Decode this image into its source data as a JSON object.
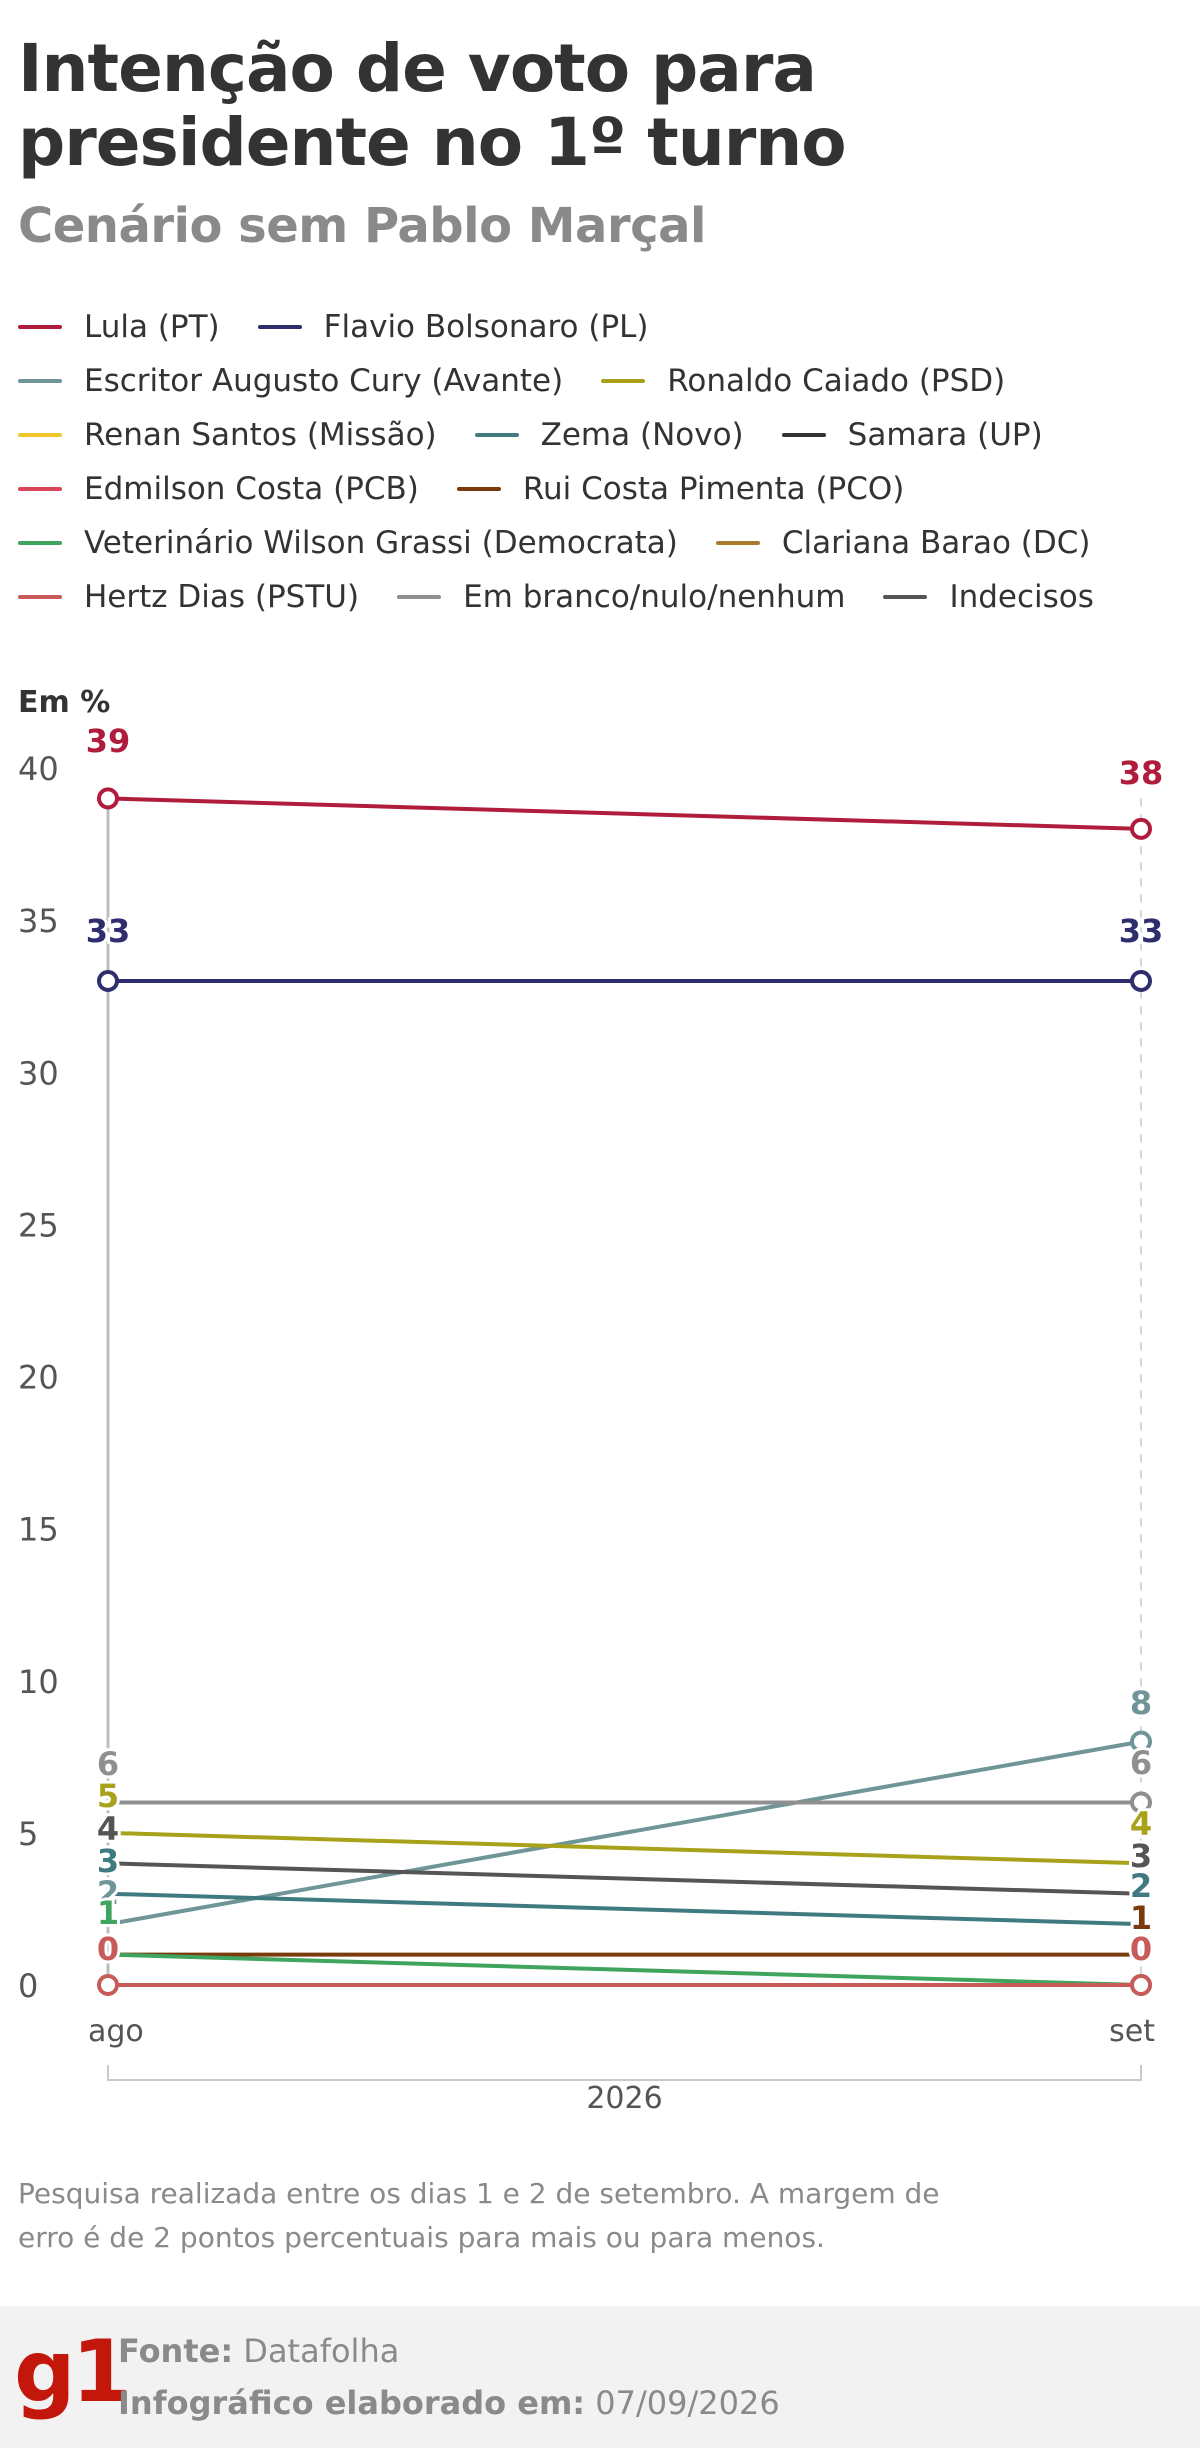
{
  "header": {
    "title": "Intenção de voto para presidente no 1º turno",
    "subtitle": "Cenário sem Pablo Marçal"
  },
  "chart_data": {
    "type": "line",
    "unit_label": "Em %",
    "x": [
      "ago",
      "set"
    ],
    "x_group_label": "2026",
    "ylim": [
      0,
      40
    ],
    "yticks": [
      0,
      5,
      10,
      15,
      20,
      25,
      30,
      35,
      40
    ],
    "grid": false,
    "legend_position": "top",
    "series": [
      {
        "name": "Lula (PT)",
        "color": "#b01c3c",
        "values": [
          39,
          38
        ]
      },
      {
        "name": "Flavio Bolsonaro (PL)",
        "color": "#2e2e6e",
        "values": [
          33,
          33
        ]
      },
      {
        "name": "Escritor Augusto Cury (Avante)",
        "color": "#6f9598",
        "values": [
          2,
          8
        ]
      },
      {
        "name": "Ronaldo Caiado (PSD)",
        "color": "#a8a21a",
        "values": [
          5,
          4
        ]
      },
      {
        "name": "Renan Santos (Missão)",
        "color": "#f2c52b",
        "values": [
          null,
          null
        ]
      },
      {
        "name": "Zema (Novo)",
        "color": "#3e7a80",
        "values": [
          3,
          2
        ]
      },
      {
        "name": "Samara (UP)",
        "color": "#333333",
        "values": [
          null,
          null
        ]
      },
      {
        "name": "Edmilson Costa (PCB)",
        "color": "#d9465a",
        "values": [
          null,
          null
        ]
      },
      {
        "name": "Rui Costa Pimenta (PCO)",
        "color": "#7a3b0c",
        "values": [
          1,
          1
        ]
      },
      {
        "name": "Veterinário Wilson Grassi (Democrata)",
        "color": "#3fa45e",
        "values": [
          1,
          0
        ]
      },
      {
        "name": "Clariana Barao (DC)",
        "color": "#a87b2e",
        "values": [
          null,
          null
        ]
      },
      {
        "name": "Hertz Dias (PSTU)",
        "color": "#c85a5a",
        "values": [
          0,
          0
        ]
      },
      {
        "name": "Em branco/nulo/nenhum",
        "color": "#8f8f8f",
        "values": [
          6,
          6
        ]
      },
      {
        "name": "Indecisos",
        "color": "#555555",
        "values": [
          4,
          3
        ]
      }
    ]
  },
  "note": "Pesquisa realizada entre os dias 1 e 2 de setembro. A margem de erro é de 2 pontos percentuais para mais ou para menos.",
  "footer": {
    "brand": "g1",
    "source_label": "Fonte:",
    "source_value": "Datafolha",
    "made_label": "Infográfico elaborado em:",
    "made_value": "07/09/2026"
  }
}
